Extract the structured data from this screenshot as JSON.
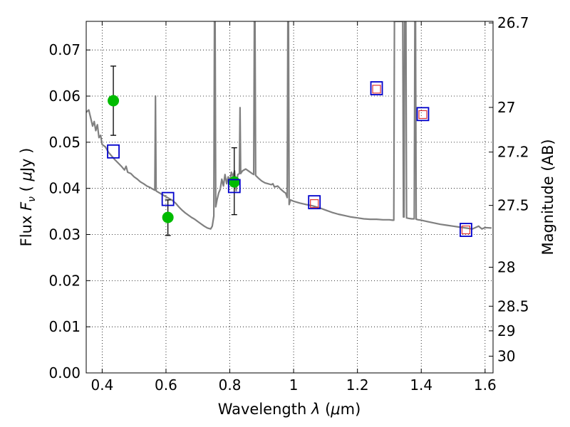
{
  "chart_data": {
    "type": "line",
    "title": "",
    "xlabel": "Wavelength  λ (μm)",
    "ylabel": "Flux  Fν  ( μJy )",
    "ylabel_right": "Magnitude (AB)",
    "xlim": [
      0.35,
      1.625
    ],
    "ylim": [
      0.0,
      0.0762
    ],
    "grid": true,
    "x_ticks": [
      0.4,
      0.6,
      0.8,
      1.0,
      1.2,
      1.4,
      1.6
    ],
    "x_tick_labels": [
      "0.4",
      "0.6",
      "0.8",
      "1",
      "1.2",
      "1.4",
      "1.6"
    ],
    "y_ticks": [
      0.0,
      0.01,
      0.02,
      0.03,
      0.04,
      0.05,
      0.06,
      0.07
    ],
    "y_tick_labels": [
      "0.00",
      "0.01",
      "0.02",
      "0.03",
      "0.04",
      "0.05",
      "0.06",
      "0.07"
    ],
    "mag_ticks": [
      {
        "mag": 26.7,
        "label": "26.7"
      },
      {
        "mag": 27.0,
        "label": "27"
      },
      {
        "mag": 27.2,
        "label": "27.2"
      },
      {
        "mag": 27.5,
        "label": "27.5"
      },
      {
        "mag": 28.0,
        "label": "28"
      },
      {
        "mag": 28.5,
        "label": "28.5"
      },
      {
        "mag": 29.0,
        "label": "29"
      },
      {
        "mag": 30.0,
        "label": "30"
      }
    ],
    "series": [
      {
        "name": "template_spectrum",
        "style": "line",
        "color": "#808080",
        "points": [
          [
            0.35,
            0.0565
          ],
          [
            0.358,
            0.057
          ],
          [
            0.365,
            0.055
          ],
          [
            0.37,
            0.0535
          ],
          [
            0.375,
            0.0545
          ],
          [
            0.38,
            0.0525
          ],
          [
            0.385,
            0.0538
          ],
          [
            0.39,
            0.051
          ],
          [
            0.395,
            0.0515
          ],
          [
            0.4,
            0.0495
          ],
          [
            0.41,
            0.049
          ],
          [
            0.42,
            0.0478
          ],
          [
            0.43,
            0.047
          ],
          [
            0.44,
            0.0462
          ],
          [
            0.45,
            0.0455
          ],
          [
            0.46,
            0.0448
          ],
          [
            0.47,
            0.044
          ],
          [
            0.475,
            0.0448
          ],
          [
            0.48,
            0.0435
          ],
          [
            0.49,
            0.0432
          ],
          [
            0.5,
            0.0425
          ],
          [
            0.51,
            0.042
          ],
          [
            0.52,
            0.0414
          ],
          [
            0.53,
            0.041
          ],
          [
            0.54,
            0.0405
          ],
          [
            0.55,
            0.0402
          ],
          [
            0.56,
            0.0398
          ],
          [
            0.565,
            0.0396
          ],
          [
            0.567,
            0.06
          ],
          [
            0.569,
            0.0396
          ],
          [
            0.57,
            0.0394
          ],
          [
            0.58,
            0.039
          ],
          [
            0.59,
            0.0386
          ],
          [
            0.6,
            0.0382
          ],
          [
            0.61,
            0.0378
          ],
          [
            0.62,
            0.0374
          ],
          [
            0.63,
            0.0368
          ],
          [
            0.64,
            0.036
          ],
          [
            0.65,
            0.0353
          ],
          [
            0.66,
            0.0347
          ],
          [
            0.67,
            0.0342
          ],
          [
            0.68,
            0.0337
          ],
          [
            0.69,
            0.0333
          ],
          [
            0.7,
            0.0328
          ],
          [
            0.71,
            0.0323
          ],
          [
            0.72,
            0.0318
          ],
          [
            0.73,
            0.0314
          ],
          [
            0.74,
            0.0312
          ],
          [
            0.745,
            0.0318
          ],
          [
            0.75,
            0.034
          ],
          [
            0.752,
            0.0762
          ],
          [
            0.754,
            0.0762
          ],
          [
            0.756,
            0.036
          ],
          [
            0.76,
            0.0375
          ],
          [
            0.765,
            0.039
          ],
          [
            0.77,
            0.0398
          ],
          [
            0.775,
            0.042
          ],
          [
            0.78,
            0.0405
          ],
          [
            0.785,
            0.043
          ],
          [
            0.79,
            0.041
          ],
          [
            0.795,
            0.0425
          ],
          [
            0.8,
            0.0415
          ],
          [
            0.805,
            0.0435
          ],
          [
            0.81,
            0.0425
          ],
          [
            0.815,
            0.0438
          ],
          [
            0.82,
            0.0395
          ],
          [
            0.825,
            0.043
          ],
          [
            0.83,
            0.0432
          ],
          [
            0.832,
            0.0575
          ],
          [
            0.834,
            0.0432
          ],
          [
            0.84,
            0.0438
          ],
          [
            0.85,
            0.0442
          ],
          [
            0.86,
            0.0437
          ],
          [
            0.87,
            0.0432
          ],
          [
            0.875,
            0.043
          ],
          [
            0.877,
            0.0762
          ],
          [
            0.879,
            0.0762
          ],
          [
            0.881,
            0.0428
          ],
          [
            0.89,
            0.0422
          ],
          [
            0.9,
            0.0416
          ],
          [
            0.91,
            0.0412
          ],
          [
            0.92,
            0.041
          ],
          [
            0.93,
            0.0408
          ],
          [
            0.935,
            0.041
          ],
          [
            0.94,
            0.0403
          ],
          [
            0.95,
            0.0405
          ],
          [
            0.96,
            0.0398
          ],
          [
            0.97,
            0.0392
          ],
          [
            0.975,
            0.039
          ],
          [
            0.98,
            0.038
          ],
          [
            0.982,
            0.0762
          ],
          [
            0.984,
            0.0762
          ],
          [
            0.986,
            0.0365
          ],
          [
            0.99,
            0.0375
          ],
          [
            1.0,
            0.0372
          ],
          [
            1.02,
            0.0368
          ],
          [
            1.04,
            0.0365
          ],
          [
            1.06,
            0.0362
          ],
          [
            1.08,
            0.0358
          ],
          [
            1.1,
            0.0353
          ],
          [
            1.12,
            0.0348
          ],
          [
            1.14,
            0.0344
          ],
          [
            1.16,
            0.0341
          ],
          [
            1.18,
            0.0338
          ],
          [
            1.2,
            0.0336
          ],
          [
            1.22,
            0.0334
          ],
          [
            1.24,
            0.0333
          ],
          [
            1.26,
            0.0333
          ],
          [
            1.28,
            0.0332
          ],
          [
            1.3,
            0.0332
          ],
          [
            1.31,
            0.0331
          ],
          [
            1.314,
            0.0331
          ],
          [
            1.316,
            0.0762
          ],
          [
            1.318,
            0.0762
          ],
          [
            1.32,
            0.0762
          ],
          [
            1.322,
            0.0762
          ],
          [
            1.342,
            0.0762
          ],
          [
            1.344,
            0.0338
          ],
          [
            1.346,
            0.0338
          ],
          [
            1.348,
            0.0762
          ],
          [
            1.352,
            0.0762
          ],
          [
            1.354,
            0.0336
          ],
          [
            1.36,
            0.0335
          ],
          [
            1.37,
            0.0334
          ],
          [
            1.378,
            0.0334
          ],
          [
            1.38,
            0.0762
          ],
          [
            1.382,
            0.0762
          ],
          [
            1.384,
            0.0333
          ],
          [
            1.39,
            0.0332
          ],
          [
            1.4,
            0.0331
          ],
          [
            1.42,
            0.0328
          ],
          [
            1.44,
            0.0325
          ],
          [
            1.46,
            0.0322
          ],
          [
            1.48,
            0.032
          ],
          [
            1.5,
            0.0318
          ],
          [
            1.52,
            0.0316
          ],
          [
            1.54,
            0.0314
          ],
          [
            1.56,
            0.0312
          ],
          [
            1.58,
            0.0318
          ],
          [
            1.59,
            0.0312
          ],
          [
            1.6,
            0.0315
          ],
          [
            1.62,
            0.0314
          ]
        ]
      },
      {
        "name": "observed_photometry",
        "style": "points",
        "marker": "circle",
        "color": "#00bb00",
        "points": [
          {
            "x": 0.435,
            "y": 0.059,
            "err_low": 0.0515,
            "err_high": 0.0665
          },
          {
            "x": 0.606,
            "y": 0.0337,
            "err_low": 0.0298,
            "err_high": 0.0375
          },
          {
            "x": 0.814,
            "y": 0.0414,
            "err_low": 0.0343,
            "err_high": 0.0488
          }
        ]
      },
      {
        "name": "model_photometry",
        "style": "points",
        "marker": "square",
        "color": "#0000cc",
        "points": [
          [
            0.435,
            0.048
          ],
          [
            0.606,
            0.0377
          ],
          [
            0.814,
            0.0405
          ],
          [
            1.065,
            0.037
          ],
          [
            1.26,
            0.0617
          ],
          [
            1.405,
            0.0561
          ],
          [
            1.54,
            0.031
          ]
        ]
      },
      {
        "name": "model_photometry_inner",
        "style": "points",
        "marker": "small-square",
        "color": "#dd3333",
        "points": [
          [
            1.065,
            0.0367
          ],
          [
            1.26,
            0.0615
          ],
          [
            1.405,
            0.056
          ],
          [
            1.54,
            0.031
          ]
        ]
      }
    ]
  }
}
